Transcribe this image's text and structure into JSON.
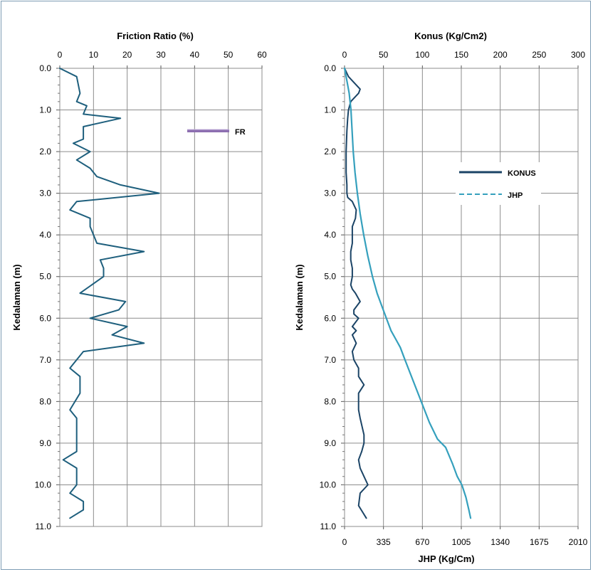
{
  "chart_data": [
    {
      "type": "line",
      "title": "Friction Ratio (%)",
      "ylabel": "Kedalaman (m)",
      "xlim": [
        0,
        60
      ],
      "ylim": [
        0,
        11
      ],
      "y_inverted": true,
      "x_ticks": [
        "0",
        "10",
        "20",
        "30",
        "40",
        "50",
        "60"
      ],
      "y_ticks": [
        "0.0",
        "1.0",
        "2.0",
        "3.0",
        "4.0",
        "5.0",
        "6.0",
        "7.0",
        "8.0",
        "9.0",
        "10.0",
        "11.0"
      ],
      "grid": true,
      "legend": {
        "placement": "top-right",
        "entries": [
          "FR"
        ]
      },
      "colors": {
        "FR": "#1e5f7d",
        "legend_swatch": "#8d6fb0"
      },
      "series": [
        {
          "name": "FR",
          "x": [
            0,
            5,
            6,
            5,
            8,
            7,
            18,
            7,
            7,
            4,
            9,
            5,
            9,
            11,
            18,
            29.5,
            5,
            3,
            9,
            9,
            11,
            25,
            12,
            13,
            13,
            6,
            19.5,
            17.5,
            9,
            20,
            15.5,
            25,
            7,
            3,
            6,
            6,
            6,
            3,
            5,
            5,
            5,
            5,
            5,
            1,
            5,
            5,
            5,
            3,
            7,
            7,
            3
          ],
          "y": [
            0,
            0.2,
            0.6,
            0.8,
            0.9,
            1.1,
            1.2,
            1.4,
            1.7,
            1.8,
            2.0,
            2.2,
            2.4,
            2.6,
            2.8,
            3.0,
            3.2,
            3.4,
            3.6,
            3.8,
            4.2,
            4.4,
            4.6,
            4.8,
            5.0,
            5.4,
            5.6,
            5.8,
            6.0,
            6.2,
            6.4,
            6.6,
            6.8,
            7.2,
            7.4,
            7.6,
            7.8,
            8.2,
            8.4,
            8.6,
            8.8,
            9.0,
            9.2,
            9.4,
            9.6,
            9.8,
            10.0,
            10.2,
            10.4,
            10.6,
            10.8
          ]
        }
      ]
    },
    {
      "type": "line",
      "title": "Konus (Kg/Cm2)",
      "xlabel": "JHP (Kg/Cm)",
      "ylabel": "Kedalaman (m)",
      "xlim": [
        0,
        300
      ],
      "x2lim": [
        0,
        2010
      ],
      "ylim": [
        0,
        11
      ],
      "y_inverted": true,
      "x_ticks": [
        "0",
        "50",
        "100",
        "150",
        "200",
        "250",
        "300"
      ],
      "x2_ticks": [
        "0",
        "335",
        "670",
        "1005",
        "1340",
        "1675",
        "2010"
      ],
      "y_ticks": [
        "0.0",
        "1.0",
        "2.0",
        "3.0",
        "4.0",
        "5.0",
        "6.0",
        "7.0",
        "8.0",
        "9.0",
        "10.0",
        "11.0"
      ],
      "grid": true,
      "legend": {
        "placement": "top-right",
        "entries": [
          "KONUS",
          "JHP"
        ]
      },
      "colors": {
        "KONUS": "#1b4466",
        "JHP": "#35a0bd"
      },
      "series": [
        {
          "name": "KONUS",
          "axis": "top",
          "x": [
            0,
            5,
            20,
            18,
            8,
            5,
            4,
            3,
            2,
            2,
            3,
            3,
            4,
            10,
            15,
            14,
            10,
            10,
            10,
            8,
            8,
            10,
            10,
            8,
            10,
            14,
            20,
            12,
            12,
            18,
            10,
            15,
            10,
            15,
            10,
            12,
            18,
            18,
            25,
            18,
            18,
            18,
            20,
            25,
            25,
            22,
            18,
            20,
            25,
            30,
            20,
            18,
            28
          ],
          "y": [
            0,
            0.2,
            0.5,
            0.6,
            0.8,
            1.0,
            1.2,
            1.5,
            2.0,
            2.5,
            2.8,
            3.0,
            3.1,
            3.2,
            3.4,
            3.6,
            3.8,
            4.0,
            4.2,
            4.4,
            4.6,
            4.8,
            5.0,
            5.2,
            5.3,
            5.4,
            5.6,
            5.8,
            5.9,
            6.0,
            6.2,
            6.3,
            6.4,
            6.6,
            6.8,
            7.0,
            7.2,
            7.4,
            7.6,
            7.8,
            8.0,
            8.2,
            8.4,
            8.8,
            9.0,
            9.2,
            9.4,
            9.6,
            9.8,
            10.0,
            10.2,
            10.5,
            10.8
          ]
        },
        {
          "name": "JHP",
          "axis": "bottom",
          "x": [
            0,
            20,
            40,
            55,
            65,
            75,
            90,
            110,
            135,
            165,
            200,
            240,
            280,
            320,
            360,
            400,
            440,
            480,
            520,
            590,
            660,
            730,
            800,
            870,
            930,
            970,
            1010,
            1045,
            1070,
            1085
          ],
          "y": [
            0,
            0.3,
            0.6,
            1.0,
            1.5,
            2.0,
            2.5,
            3.0,
            3.5,
            4.0,
            4.5,
            5.0,
            5.4,
            5.7,
            6.0,
            6.3,
            6.5,
            6.7,
            7.0,
            7.5,
            8.0,
            8.5,
            8.9,
            9.1,
            9.5,
            9.8,
            10.0,
            10.3,
            10.6,
            10.8
          ]
        }
      ]
    }
  ]
}
